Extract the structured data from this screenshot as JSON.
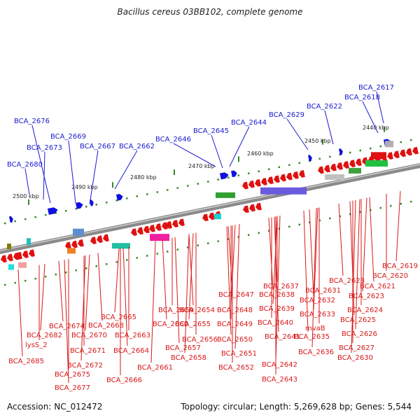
{
  "title": "Bacillus cereus 03BB102, complete genome",
  "footer": {
    "accession": "Accession: NC_012472",
    "summary": "Topology: circular; Length: 5,269,628 bp; Genes: 5,544"
  },
  "scale_labels": [
    "2500 kbp",
    "2490 kbp",
    "2480 kbp",
    "2470 kbp",
    "2460 kbp",
    "2450 kbp",
    "2440 kbp"
  ],
  "top_labels": [
    "BCA_2680",
    "BCA_2673",
    "BCA_2676",
    "BCA_2669",
    "BCA_2667",
    "BCA_2662",
    "BCA_2646",
    "BCA_2645",
    "BCA_2644",
    "BCA_2629",
    "BCA_2622",
    "BCA_2618",
    "BCA_2617"
  ],
  "bottom_labels": [
    "BCA_2685",
    "lysS_2",
    "BCA_2682",
    "BCA_2677",
    "BCA_2675",
    "BCA_2672",
    "BCA_2674",
    "BCA_2671",
    "BCA_2670",
    "BCA_2668",
    "BCA_2666",
    "BCA_2665",
    "BCA_2664",
    "BCA_2663",
    "BCA_2661",
    "BCA_2660",
    "BCA_2659",
    "BCA_2658",
    "BCA_2657",
    "BCA_2656",
    "BCA_2655",
    "BCA_2654",
    "BCA_2652",
    "BCA_2651",
    "BCA_2650",
    "BCA_2649",
    "BCA_2648",
    "BCA_2647",
    "BCA_2643",
    "BCA_2642",
    "BCA_2641",
    "BCA_2640",
    "BCA_2639",
    "BCA_2638",
    "BCA_2637",
    "BCA_2636",
    "BCA_2635",
    "mvaB",
    "BCA_2633",
    "BCA_2632",
    "BCA_2631",
    "BCA_2630",
    "BCA_2628",
    "BCA_2627",
    "BCA_2626",
    "BCA_2625",
    "BCA_2624",
    "BCA_2623",
    "BCA_2621",
    "BCA_2620",
    "BCA_2619"
  ],
  "colors": {
    "forward_gene": "#1010e0",
    "reverse_gene": "#e01010",
    "backbone": "#888888",
    "tick": "#3a8a2a"
  }
}
